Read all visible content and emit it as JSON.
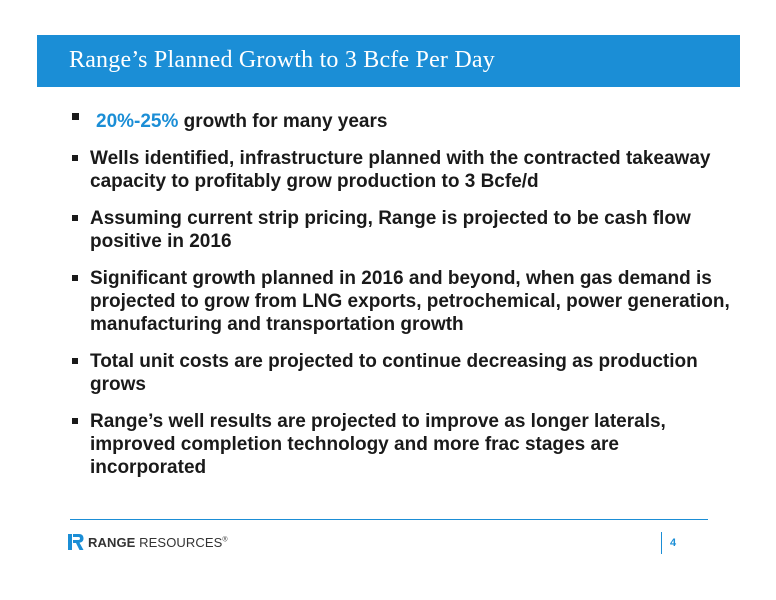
{
  "slide": {
    "title": "Range’s Planned Growth to 3 Bcfe Per Day",
    "page_number": "4"
  },
  "bullets": [
    {
      "highlight": "20%-25%",
      "text": " growth for many years"
    },
    {
      "text": "Wells identified, infrastructure planned with the contracted takeaway capacity to profitably grow production to 3 Bcfe/d"
    },
    {
      "text": "Assuming current strip pricing, Range is projected to be cash flow positive in 2016"
    },
    {
      "text": "Significant growth planned in 2016 and beyond, when gas demand is projected to grow from LNG exports, petrochemical, power generation, manufacturing and transportation growth"
    },
    {
      "text": "Total unit costs are projected to continue decreasing as production grows"
    },
    {
      "text": "Range’s well results are projected to improve as longer laterals, improved completion technology and more frac stages are incorporated"
    }
  ],
  "footer": {
    "logo_bold": "RANGE",
    "logo_regular": " RESOURCES",
    "logo_mark": "®"
  },
  "colors": {
    "accent": "#1b8ed6",
    "text": "#1a1a1a"
  },
  "icons": {
    "logo": "range-resources-r-icon"
  }
}
